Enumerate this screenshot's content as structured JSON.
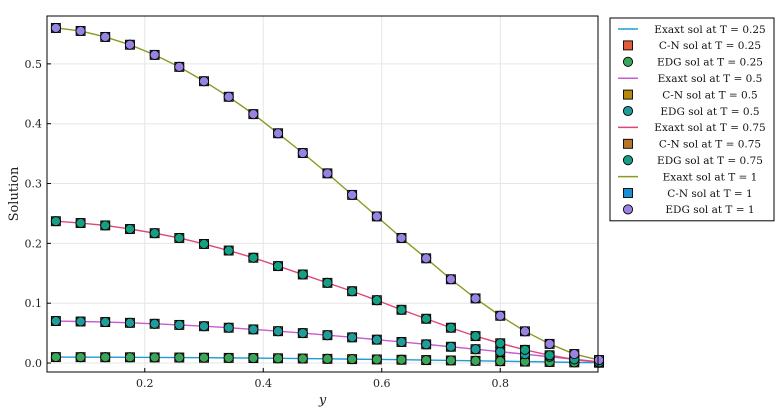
{
  "chart_data": {
    "type": "line",
    "xlabel": "y",
    "ylabel": "Solution",
    "xlim": [
      0.035,
      0.965
    ],
    "ylim": [
      -0.015,
      0.58
    ],
    "xticks": [
      0.2,
      0.4,
      0.6,
      0.8
    ],
    "xtick_labels": [
      "0.2",
      "0.4",
      "0.6",
      "0.8"
    ],
    "yticks": [
      0.0,
      0.1,
      0.2,
      0.3,
      0.4,
      0.5
    ],
    "ytick_labels": [
      "0.0",
      "0.1",
      "0.2",
      "0.3",
      "0.4",
      "0.5"
    ],
    "grid": true,
    "legend_position": "outside-right",
    "x": [
      0.05,
      0.0917,
      0.1333,
      0.175,
      0.2167,
      0.2583,
      0.3,
      0.3417,
      0.3833,
      0.425,
      0.4667,
      0.5083,
      0.55,
      0.5917,
      0.6333,
      0.675,
      0.7167,
      0.7583,
      0.8,
      0.8417,
      0.8833,
      0.925,
      0.9667
    ],
    "series": [
      {
        "name": "Exaxt sol at T = 0.25",
        "kind": "line",
        "color": "#1f9bd7",
        "values": [
          0.0099,
          0.0098,
          0.0097,
          0.0096,
          0.0094,
          0.0092,
          0.0089,
          0.0086,
          0.0083,
          0.0079,
          0.0075,
          0.007,
          0.0065,
          0.006,
          0.0055,
          0.0049,
          0.0043,
          0.0037,
          0.0031,
          0.0024,
          0.0018,
          0.0011,
          0.0005
        ]
      },
      {
        "name": "C-N sol at T = 0.25",
        "kind": "square",
        "color": "#e35c3c",
        "values": [
          0.0099,
          0.0098,
          0.0097,
          0.0096,
          0.0094,
          0.0092,
          0.0089,
          0.0086,
          0.0083,
          0.0079,
          0.0075,
          0.007,
          0.0065,
          0.006,
          0.0055,
          0.0049,
          0.0043,
          0.0037,
          0.0031,
          0.0024,
          0.0018,
          0.0011,
          0.0005
        ]
      },
      {
        "name": "EDG sol at T = 0.25",
        "kind": "circle",
        "color": "#3aa65a",
        "values": [
          0.0099,
          0.0098,
          0.0097,
          0.0096,
          0.0094,
          0.0092,
          0.0089,
          0.0086,
          0.0083,
          0.0079,
          0.0075,
          0.007,
          0.0065,
          0.006,
          0.0055,
          0.0049,
          0.0043,
          0.0037,
          0.0031,
          0.0024,
          0.0018,
          0.0011,
          0.0005
        ]
      },
      {
        "name": "Exaxt sol at T = 0.5",
        "kind": "line",
        "color": "#c85bd0",
        "values": [
          0.0702,
          0.0694,
          0.0685,
          0.0672,
          0.0656,
          0.0637,
          0.0615,
          0.059,
          0.0562,
          0.0532,
          0.05,
          0.0465,
          0.0429,
          0.0391,
          0.0352,
          0.0312,
          0.0272,
          0.0231,
          0.0189,
          0.0147,
          0.0105,
          0.0063,
          0.0021
        ]
      },
      {
        "name": "C-N sol at T = 0.5",
        "kind": "square",
        "color": "#b58a0a",
        "values": [
          0.0702,
          0.0694,
          0.0685,
          0.0672,
          0.0656,
          0.0637,
          0.0615,
          0.059,
          0.0562,
          0.0532,
          0.05,
          0.0465,
          0.0429,
          0.0391,
          0.0352,
          0.0312,
          0.0272,
          0.0231,
          0.0189,
          0.0147,
          0.0105,
          0.0063,
          0.0021
        ]
      },
      {
        "name": "EDG sol at T = 0.5",
        "kind": "circle",
        "color": "#1f9c9c",
        "values": [
          0.0702,
          0.0694,
          0.0685,
          0.0672,
          0.0656,
          0.0637,
          0.0615,
          0.059,
          0.0562,
          0.0532,
          0.05,
          0.0465,
          0.0429,
          0.0391,
          0.0352,
          0.0312,
          0.0272,
          0.0231,
          0.0189,
          0.0147,
          0.0105,
          0.0063,
          0.0021
        ]
      },
      {
        "name": "Exaxt sol at T = 0.75",
        "kind": "line",
        "color": "#e0457a",
        "values": [
          0.237,
          0.234,
          0.23,
          0.224,
          0.217,
          0.209,
          0.199,
          0.188,
          0.176,
          0.162,
          0.148,
          0.134,
          0.12,
          0.105,
          0.089,
          0.074,
          0.059,
          0.045,
          0.033,
          0.022,
          0.013,
          0.006,
          0.001
        ]
      },
      {
        "name": "C-N sol at T = 0.75",
        "kind": "square",
        "color": "#b8752a",
        "values": [
          0.237,
          0.234,
          0.23,
          0.224,
          0.217,
          0.209,
          0.199,
          0.188,
          0.176,
          0.162,
          0.148,
          0.134,
          0.12,
          0.105,
          0.089,
          0.074,
          0.059,
          0.045,
          0.033,
          0.022,
          0.013,
          0.006,
          0.001
        ]
      },
      {
        "name": "EDG sol at T = 0.75",
        "kind": "circle",
        "color": "#15a085",
        "values": [
          0.237,
          0.234,
          0.23,
          0.224,
          0.217,
          0.209,
          0.199,
          0.188,
          0.176,
          0.162,
          0.148,
          0.134,
          0.12,
          0.105,
          0.089,
          0.074,
          0.059,
          0.045,
          0.033,
          0.022,
          0.013,
          0.006,
          0.001
        ]
      },
      {
        "name": "Exaxt sol at T = 1",
        "kind": "line",
        "color": "#8a9a1e",
        "values": [
          0.56,
          0.555,
          0.545,
          0.532,
          0.515,
          0.495,
          0.471,
          0.445,
          0.416,
          0.384,
          0.351,
          0.317,
          0.281,
          0.245,
          0.209,
          0.175,
          0.14,
          0.108,
          0.079,
          0.053,
          0.032,
          0.015,
          0.005
        ]
      },
      {
        "name": "C-N sol at T = 1",
        "kind": "square",
        "color": "#1b8fd6",
        "values": [
          0.56,
          0.555,
          0.545,
          0.532,
          0.515,
          0.495,
          0.471,
          0.445,
          0.416,
          0.384,
          0.351,
          0.317,
          0.281,
          0.245,
          0.209,
          0.175,
          0.14,
          0.108,
          0.079,
          0.053,
          0.032,
          0.015,
          0.005
        ]
      },
      {
        "name": "EDG sol at T = 1",
        "kind": "circle",
        "color": "#9a82e0",
        "values": [
          0.56,
          0.555,
          0.545,
          0.532,
          0.515,
          0.495,
          0.471,
          0.445,
          0.416,
          0.384,
          0.351,
          0.317,
          0.281,
          0.245,
          0.209,
          0.175,
          0.14,
          0.108,
          0.079,
          0.053,
          0.032,
          0.015,
          0.005
        ]
      }
    ]
  }
}
